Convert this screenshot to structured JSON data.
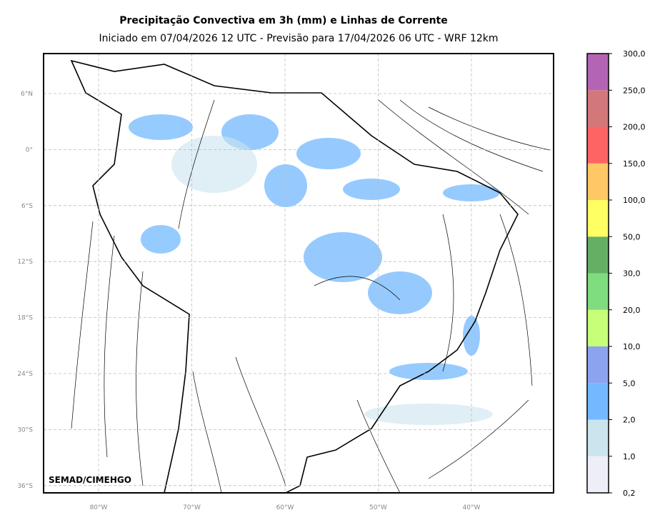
{
  "header": {
    "title": "Precipitação Convectiva em 3h (mm) e Linhas de Corrente",
    "subtitle": "Iniciado em 07/04/2026 12 UTC - Previsão para 17/04/2026 06 UTC - WRF 12km"
  },
  "map": {
    "lat_labels": [
      "6°N",
      "0°",
      "6°S",
      "12°S",
      "18°S",
      "24°S",
      "30°S",
      "36°S"
    ],
    "lon_labels": [
      "80°W",
      "70°W",
      "60°W",
      "50°W",
      "40°W"
    ],
    "credit": "SEMAD/CIMEHGO"
  },
  "colorbar": {
    "labels": [
      "0,2",
      "1,0",
      "2,0",
      "5,0",
      "10,0",
      "20,0",
      "30,0",
      "50,0",
      "100,0",
      "150,0",
      "200,0",
      "250,0",
      "300,0"
    ],
    "colors": [
      "#eeeef8",
      "#cce4ee",
      "#73b9ff",
      "#8ca4ef",
      "#c8ff78",
      "#7fdc7f",
      "#64af64",
      "#ffff64",
      "#ffc864",
      "#ff6464",
      "#d2787a",
      "#b464b4"
    ]
  }
}
